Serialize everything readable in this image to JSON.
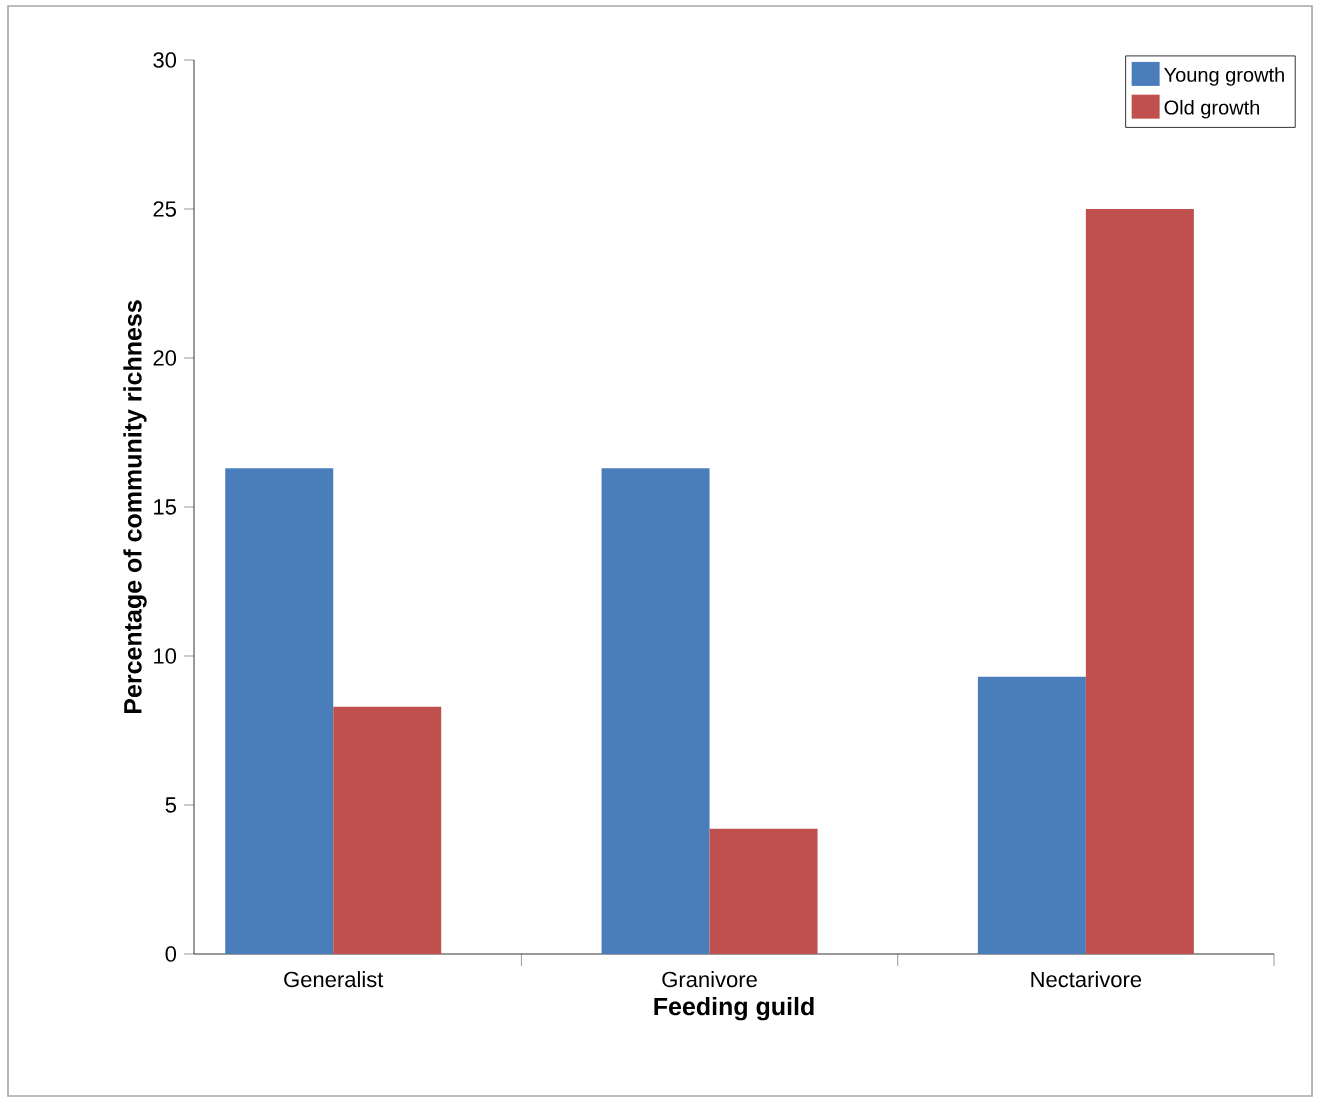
{
  "chart_data": {
    "type": "bar",
    "xlabel": "Feeding guild",
    "ylabel": "Percentage of community richness",
    "categories": [
      "Generalist",
      "Granivore",
      "Nectarivore"
    ],
    "series": [
      {
        "name": "Young growth",
        "color": "#4a7ebb",
        "values": [
          16.3,
          16.3,
          9.3
        ]
      },
      {
        "name": "Old growth",
        "color": "#c0504d",
        "values": [
          8.3,
          4.2,
          25
        ]
      }
    ],
    "ylim": [
      0,
      30
    ],
    "yticks": [
      0,
      5,
      10,
      15,
      20,
      25,
      30
    ],
    "grid": false,
    "legend": "top right"
  }
}
